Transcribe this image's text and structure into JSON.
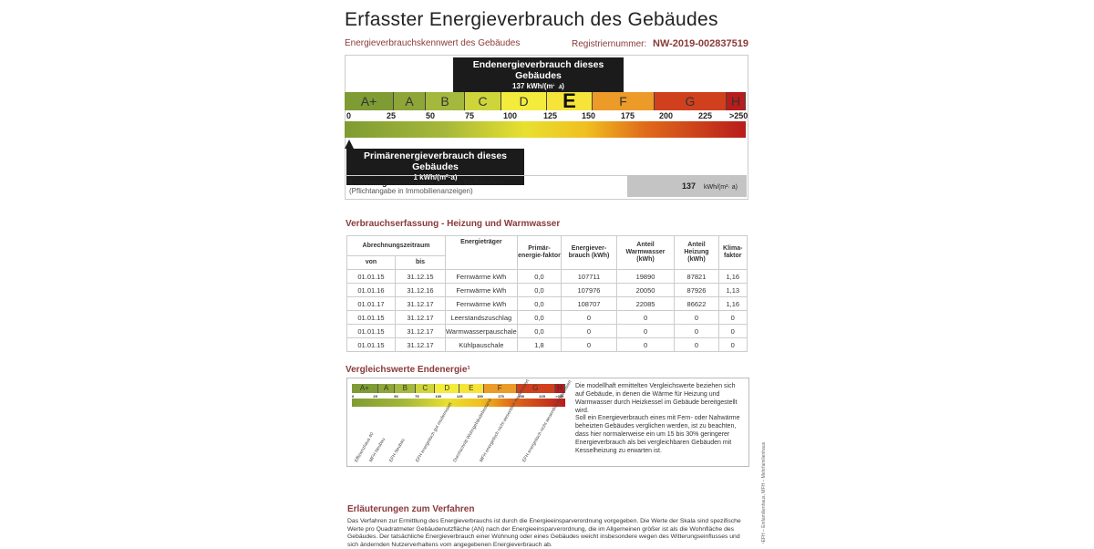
{
  "title": "Erfasster Energieverbrauch des Gebäudes",
  "subtitle": "Energieverbrauchskennwert des Gebäudes",
  "registration": {
    "label": "Registriernummer:",
    "value": "NW-2019-002837519"
  },
  "scale": {
    "classes": [
      {
        "label": "A+",
        "color": "#7f9b33"
      },
      {
        "label": "A",
        "color": "#8ea538"
      },
      {
        "label": "B",
        "color": "#a3b83c"
      },
      {
        "label": "C",
        "color": "#cdd53a"
      },
      {
        "label": "D",
        "color": "#f3ec3c"
      },
      {
        "label": "E",
        "color": "#f6e43a"
      },
      {
        "label": "F",
        "color": "#ec9a28"
      },
      {
        "label": "G",
        "color": "#d0401c"
      },
      {
        "label": "H",
        "color": "#b81c1c"
      }
    ],
    "ticks": [
      "0",
      "25",
      "50",
      "75",
      "100",
      "125",
      "150",
      "175",
      "200",
      "225",
      ">250"
    ],
    "current_class": "E"
  },
  "end_energy_callout": {
    "title": "Endenergieverbrauch dieses Gebäudes",
    "value": "137 kWh/(m²·a)",
    "value_num": 137
  },
  "primary_energy_callout": {
    "title": "Primärenergieverbrauch dieses Gebäudes",
    "value": "1 kWh/(m²·a)",
    "value_num": 1
  },
  "summary": {
    "label": "Endenergieverbrauch dieses Gebäudes",
    "note": "(Pflichtangabe in Immobilienanzeigen)",
    "value": "137",
    "unit": "kWh/(m²· a)"
  },
  "consumption": {
    "heading": "Verbrauchserfassung - Heizung und Warmwasser",
    "headers": {
      "period": "Abrechnungszeitraum",
      "from": "von",
      "to": "bis",
      "carrier": "Energieträger",
      "primary": "Primär-energie-faktor",
      "consumption": "Energiever-brauch (kWh)",
      "hot_water": "Anteil Warmwasser (kWh)",
      "heating": "Anteil Heizung (kWh)",
      "climate": "Klima-faktor"
    },
    "rows": [
      [
        "01.01.15",
        "31.12.15",
        "Fernwärme kWh",
        "0,0",
        "107711",
        "19890",
        "87821",
        "1,16"
      ],
      [
        "01.01.16",
        "31.12.16",
        "Fernwärme kWh",
        "0,0",
        "107976",
        "20050",
        "87926",
        "1,13"
      ],
      [
        "01.01.17",
        "31.12.17",
        "Fernwärme kWh",
        "0,0",
        "108707",
        "22085",
        "86622",
        "1,16"
      ],
      [
        "01.01.15",
        "31.12.17",
        "Leerstandszuschlag",
        "0,0",
        "0",
        "0",
        "0",
        "0"
      ],
      [
        "01.01.15",
        "31.12.17",
        "Warmwasserpauschale",
        "0,0",
        "0",
        "0",
        "0",
        "0"
      ],
      [
        "01.01.15",
        "31.12.17",
        "Kühlpauschale",
        "1,8",
        "0",
        "0",
        "0",
        "0"
      ]
    ]
  },
  "comparison": {
    "heading": "Vergleichswerte Endenergie¹",
    "labels": [
      "Effizienzhaus 40",
      "MFH Neubau",
      "EFH Neubau",
      "EFH energetisch gut modernisiert",
      "Durchschnitt Wohngebäudebestand",
      "MFH energetisch nicht wesentlich modernisiert",
      "EFH energetisch nicht wesentlich modernisiert"
    ],
    "text1": "Die modellhaft ermittelten Vergleichswerte beziehen sich auf Gebäude, in denen die Wärme für Heizung und Warmwasser durch Heizkessel im Gebäude bereitgestellt wird.",
    "text2": "Soll ein Energieverbrauch eines mit Fern- oder Nahwärme beheizten Gebäudes verglichen werden, ist zu beachten, dass hier normalerweise ein um 15 bis 30% geringerer Energieverbrauch als bei vergleichbaren Gebäuden mit Kesselheizung zu erwarten ist."
  },
  "footnote": "¹EFH – Einfamilienhaus, MFH – Mehrfamilienhaus",
  "explanation": {
    "heading": "Erläuterungen zum Verfahren",
    "text": "Das Verfahren zur Ermittlung des Energieverbrauchs ist durch die Energieeinsparverordnung vorgegeben. Die Werte der Skala sind spezifische Werte pro Quadratmeter Gebäudenutzfläche (AN) nach der Energieeinsparverordnung, die im Allgemeinen größer ist als die Wohnfläche des Gebäudes. Der tatsächliche Energieverbrauch einer Wohnung oder eines Gebäudes weicht insbesondere wegen des Witterungseinflusses und sich ändernden Nutzerverhaltens vom angegebenen Energieverbrauch ab."
  }
}
